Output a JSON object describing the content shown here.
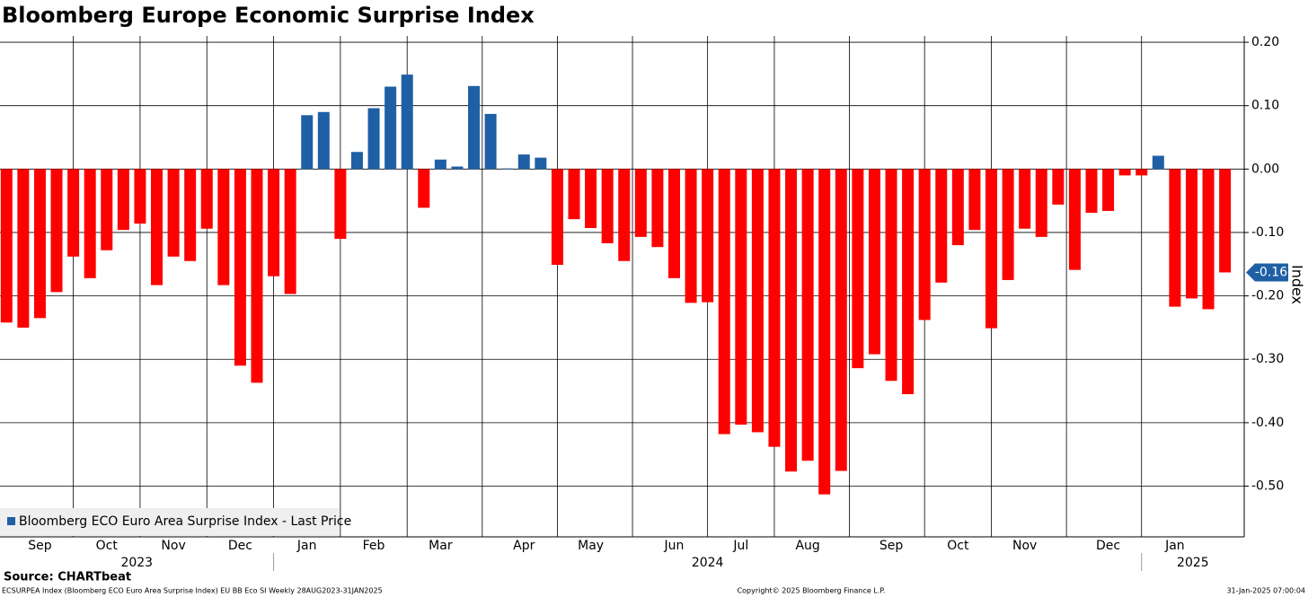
{
  "chart_data": {
    "type": "bar",
    "title": "Bloomberg Europe Economic Surprise Index",
    "series": [
      {
        "name": "Bloomberg ECO Euro Area Surprise Index - Last Price",
        "color": "#1f5fa6",
        "negative_color": "#ff0000",
        "values": [
          -0.242,
          -0.25,
          -0.235,
          -0.194,
          -0.138,
          -0.172,
          -0.128,
          -0.096,
          -0.086,
          -0.183,
          -0.138,
          -0.145,
          -0.094,
          -0.183,
          -0.31,
          -0.337,
          -0.169,
          -0.197,
          0.085,
          0.09,
          -0.11,
          0.027,
          0.096,
          0.13,
          0.149,
          -0.061,
          0.015,
          0.004,
          0.131,
          0.087,
          0.001,
          0.023,
          0.018,
          -0.151,
          -0.079,
          -0.093,
          -0.117,
          -0.145,
          -0.107,
          -0.123,
          -0.172,
          -0.211,
          -0.21,
          -0.418,
          -0.403,
          -0.415,
          -0.438,
          -0.477,
          -0.46,
          -0.513,
          -0.476,
          -0.314,
          -0.292,
          -0.334,
          -0.355,
          -0.238,
          -0.179,
          -0.12,
          -0.096,
          -0.251,
          -0.175,
          -0.094,
          -0.107,
          -0.056,
          -0.159,
          -0.069,
          -0.066,
          -0.01,
          -0.01,
          0.021,
          -0.217,
          -0.204,
          -0.221,
          -0.163
        ]
      }
    ],
    "categories": [
      null,
      null,
      "Sep",
      null,
      null,
      null,
      "Oct",
      null,
      null,
      null,
      "Nov",
      null,
      null,
      null,
      "Dec",
      null,
      null,
      null,
      "Jan",
      null,
      null,
      null,
      "Feb",
      null,
      null,
      null,
      "Mar",
      null,
      null,
      null,
      null,
      "Apr",
      null,
      null,
      null,
      "May",
      null,
      null,
      null,
      null,
      "Jun",
      null,
      null,
      null,
      "Jul",
      null,
      null,
      null,
      "Aug",
      null,
      null,
      null,
      null,
      "Sep",
      null,
      null,
      null,
      "Oct",
      null,
      null,
      null,
      "Nov",
      null,
      null,
      null,
      null,
      "Dec",
      null,
      null,
      null,
      "Jan",
      null,
      null,
      null
    ],
    "year_labels": [
      "2023",
      "2024",
      "2025"
    ],
    "ylim": [
      -0.58,
      0.21
    ],
    "yticks": [
      {
        "value": 0.2,
        "label": "0.20"
      },
      {
        "value": 0.1,
        "label": "0.10"
      },
      {
        "value": 0,
        "label": "0.00"
      },
      {
        "value": -0.1,
        "label": "-0.10"
      },
      {
        "value": -0.2,
        "label": "-0.20"
      },
      {
        "value": -0.3,
        "label": "-0.30"
      },
      {
        "value": -0.4,
        "label": "-0.40"
      },
      {
        "value": -0.5,
        "label": "-0.50"
      }
    ],
    "y_axis_label": "Index",
    "last_value_label": "-0.16",
    "grid": true,
    "legend": "lower left",
    "source": "Source: CHARTbeat",
    "footer_left": "ECSURPEA Index (Bloomberg ECO Euro Area Surprise Index) EU BB Eco SI  Weekly 28AUG2023-31JAN2025",
    "footer_center": "Copyright© 2025 Bloomberg Finance L.P.",
    "footer_right": "31-Jan-2025 07:00:04"
  }
}
